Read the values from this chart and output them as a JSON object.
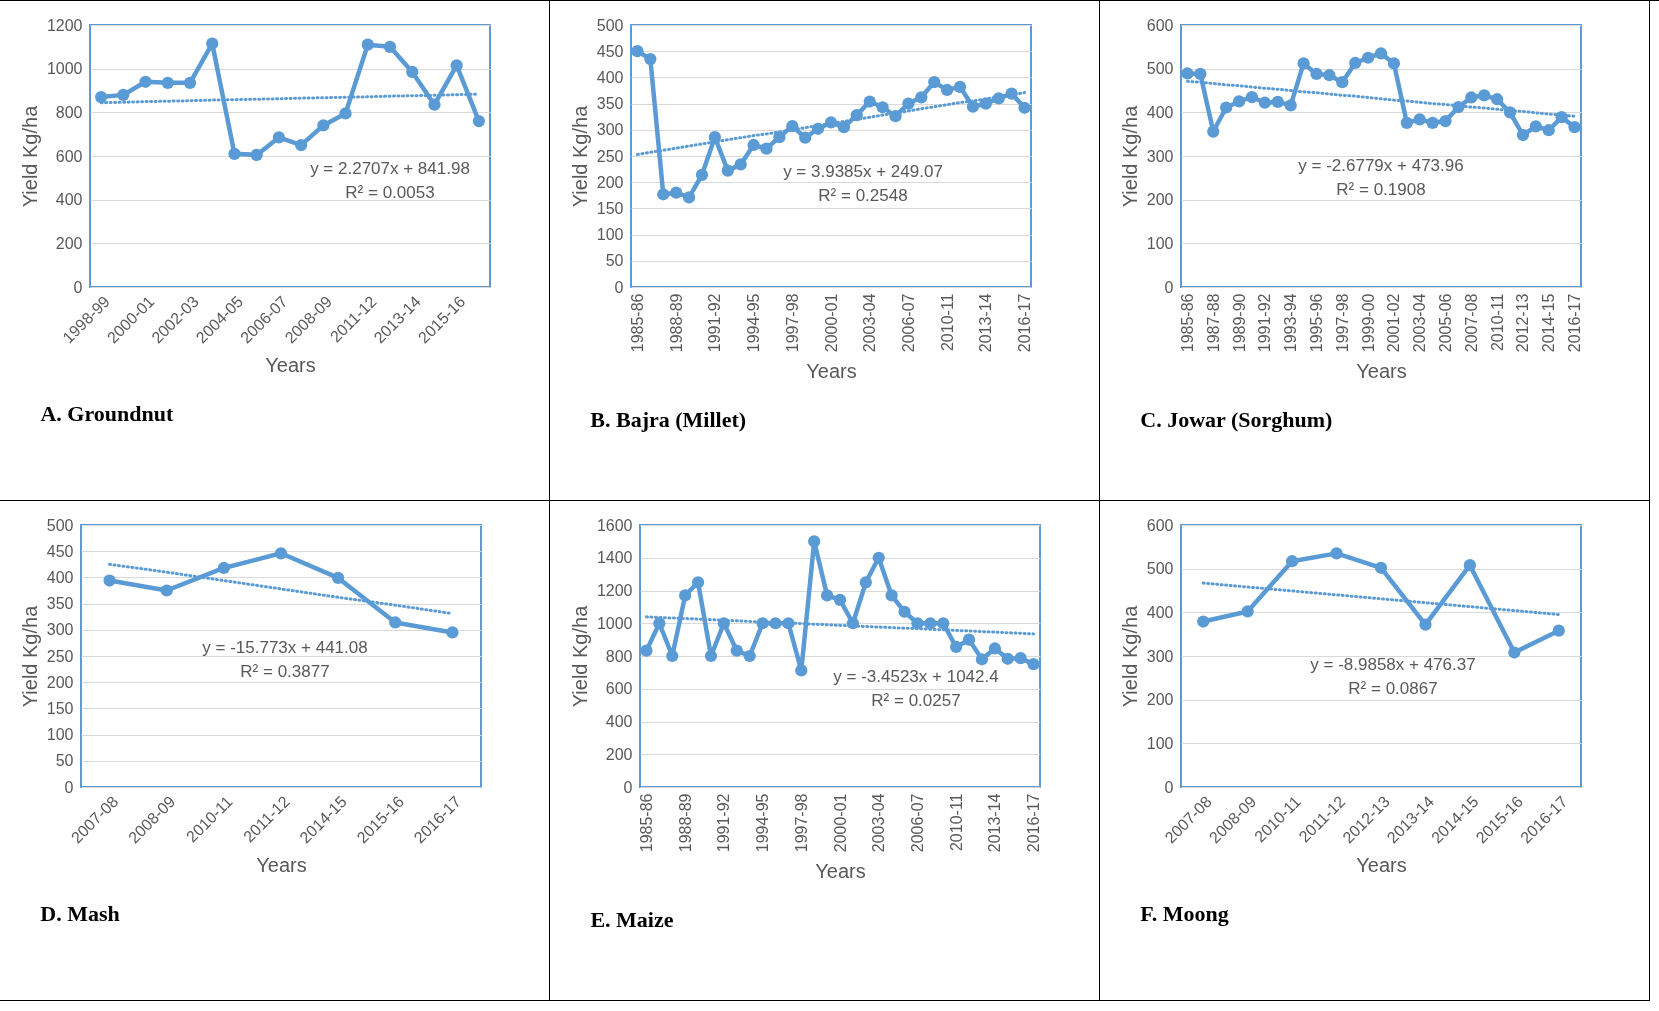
{
  "chart_data": [
    {
      "type": "line",
      "title": "A. Groundnut",
      "xlabel": "Years",
      "ylabel": "Yield Kg/ha",
      "ylim": [
        0,
        1200
      ],
      "yticks": [
        0,
        200,
        400,
        600,
        800,
        1000,
        1200
      ],
      "grid": "y",
      "marker": "circle",
      "categories": [
        "1998-99",
        null,
        "2000-01",
        null,
        "2002-03",
        null,
        "2004-05",
        null,
        "2006-07",
        null,
        "2008-09",
        null,
        "2011-12",
        null,
        "2013-14",
        null,
        "2015-16",
        null
      ],
      "series": [
        {
          "color": "#5b9bd5",
          "values": [
            870,
            880,
            940,
            935,
            935,
            1115,
            610,
            605,
            685,
            650,
            740,
            795,
            1110,
            1100,
            985,
            835,
            1015,
            760
          ]
        },
        {
          "color": "#5b9bd5",
          "marker": "none",
          "line_style": "dotted",
          "values": [
            844,
            846,
            849,
            851,
            853,
            856,
            858,
            860,
            862,
            865,
            867,
            869,
            871,
            874,
            876,
            878,
            881,
            883
          ]
        }
      ],
      "annotations": [
        "y = 2.2707x + 841.98",
        "R² = 0.0053"
      ]
    },
    {
      "type": "line",
      "title": "B. Bajra (Millet)",
      "xlabel": "Years",
      "ylabel": "Yield Kg/ha",
      "ylim": [
        0,
        500
      ],
      "yticks": [
        0,
        50,
        100,
        150,
        200,
        250,
        300,
        350,
        400,
        450,
        500
      ],
      "grid": "y",
      "marker": "circle",
      "categories": [
        "1985-86",
        null,
        null,
        "1988-89",
        null,
        null,
        "1991-92",
        null,
        null,
        "1994-95",
        null,
        null,
        "1997-98",
        null,
        null,
        "2000-01",
        null,
        null,
        "2003-04",
        null,
        null,
        "2006-07",
        null,
        null,
        "2010-11",
        null,
        null,
        "2013-14",
        null,
        null,
        "2016-17"
      ],
      "series": [
        {
          "color": "#5b9bd5",
          "values": [
            450,
            435,
            177,
            180,
            171,
            214,
            286,
            222,
            234,
            271,
            264,
            286,
            307,
            285,
            302,
            314,
            305,
            328,
            354,
            343,
            326,
            350,
            362,
            391,
            376,
            382,
            344,
            350,
            360,
            369,
            342
          ]
        },
        {
          "color": "#5b9bd5",
          "marker": "none",
          "line_style": "dotted",
          "values": [
            253,
            257,
            261,
            265,
            269,
            273,
            277,
            281,
            285,
            289,
            292,
            296,
            300,
            304,
            308,
            312,
            316,
            320,
            324,
            328,
            332,
            336,
            340,
            344,
            348,
            352,
            355,
            359,
            363,
            367,
            371
          ]
        }
      ],
      "annotations": [
        "y = 3.9385x + 249.07",
        "R² = 0.2548"
      ]
    },
    {
      "type": "line",
      "title": "C. Jowar (Sorghum)",
      "xlabel": "Years",
      "ylabel": "Yield Kg/ha",
      "ylim": [
        0,
        600
      ],
      "yticks": [
        0,
        100,
        200,
        300,
        400,
        500,
        600
      ],
      "grid": "y",
      "marker": "circle",
      "categories": [
        "1985-86",
        null,
        "1987-88",
        null,
        "1989-90",
        null,
        "1991-92",
        null,
        "1993-94",
        null,
        "1995-96",
        null,
        "1997-98",
        null,
        "1999-00",
        null,
        "2001-02",
        null,
        "2003-04",
        null,
        "2005-06",
        null,
        "2007-08",
        null,
        "2010-11",
        null,
        "2012-13",
        null,
        "2014-15",
        null,
        "2016-17"
      ],
      "series": [
        {
          "color": "#5b9bd5",
          "values": [
            489,
            488,
            356,
            411,
            425,
            435,
            422,
            424,
            416,
            512,
            488,
            485,
            469,
            513,
            525,
            535,
            512,
            376,
            384,
            376,
            380,
            412,
            434,
            439,
            430,
            400,
            348,
            368,
            359,
            389,
            366
          ]
        },
        {
          "color": "#5b9bd5",
          "marker": "none",
          "line_style": "dotted",
          "values": [
            471,
            469,
            466,
            463,
            461,
            458,
            455,
            453,
            450,
            447,
            445,
            442,
            439,
            437,
            434,
            431,
            428,
            426,
            423,
            420,
            418,
            415,
            412,
            410,
            407,
            404,
            402,
            399,
            396,
            394,
            391
          ]
        }
      ],
      "annotations": [
        "y = -2.6779x + 473.96",
        "R² = 0.1908"
      ]
    },
    {
      "type": "line",
      "title": "D. Mash",
      "xlabel": "Years",
      "ylabel": "Yield Kg/ha",
      "ylim": [
        0,
        500
      ],
      "yticks": [
        0,
        50,
        100,
        150,
        200,
        250,
        300,
        350,
        400,
        450,
        500
      ],
      "grid": "y",
      "marker": "circle",
      "categories": [
        "2007-08",
        "2008-09",
        "2010-11",
        "2011-12",
        "2014-15",
        "2015-16",
        "2016-17"
      ],
      "series": [
        {
          "color": "#5b9bd5",
          "values": [
            394,
            375,
            418,
            446,
            399,
            314,
            295
          ]
        },
        {
          "color": "#5b9bd5",
          "marker": "none",
          "line_style": "dotted",
          "values": [
            425,
            410,
            394,
            378,
            362,
            347,
            331
          ]
        }
      ],
      "annotations": [
        "y = -15.773x + 441.08",
        "R² = 0.3877"
      ]
    },
    {
      "type": "line",
      "title": "E. Maize",
      "xlabel": "Years",
      "ylabel": "Yield Kg/ha",
      "ylim": [
        0,
        1600
      ],
      "yticks": [
        0,
        200,
        400,
        600,
        800,
        1000,
        1200,
        1400,
        1600
      ],
      "grid": "y",
      "marker": "circle",
      "categories": [
        "1985-86",
        null,
        null,
        "1988-89",
        null,
        null,
        "1991-92",
        null,
        null,
        "1994-95",
        null,
        null,
        "1997-98",
        null,
        null,
        "2000-01",
        null,
        null,
        "2003-04",
        null,
        null,
        "2006-07",
        null,
        null,
        "2010-11",
        null,
        null,
        "2013-14",
        null,
        null,
        "2016-17"
      ],
      "series": [
        {
          "color": "#5b9bd5",
          "values": [
            833,
            1000,
            800,
            1170,
            1250,
            800,
            1000,
            833,
            800,
            1000,
            1000,
            1000,
            712,
            1500,
            1170,
            1143,
            1000,
            1250,
            1400,
            1170,
            1070,
            1000,
            1000,
            1000,
            855,
            900,
            780,
            846,
            783,
            787,
            750
          ]
        },
        {
          "color": "#5b9bd5",
          "marker": "none",
          "line_style": "dotted",
          "values": [
            1039,
            1035,
            1032,
            1029,
            1025,
            1022,
            1018,
            1015,
            1011,
            1008,
            1004,
            1001,
            998,
            994,
            991,
            987,
            984,
            980,
            977,
            973,
            970,
            967,
            963,
            960,
            956,
            953,
            949,
            946,
            942,
            939,
            935
          ]
        }
      ],
      "annotations": [
        "y = -3.4523x + 1042.4",
        "R² = 0.0257"
      ]
    },
    {
      "type": "line",
      "title": "F. Moong",
      "xlabel": "Years",
      "ylabel": "Yield Kg/ha",
      "ylim": [
        0,
        600
      ],
      "yticks": [
        0,
        100,
        200,
        300,
        400,
        500,
        600
      ],
      "grid": "y",
      "marker": "circle",
      "categories": [
        "2007-08",
        "2008-09",
        "2010-11",
        "2011-12",
        "2012-13",
        "2013-14",
        "2014-15",
        "2015-16",
        "2016-17"
      ],
      "series": [
        {
          "color": "#5b9bd5",
          "values": [
            379,
            402,
            517,
            535,
            502,
            372,
            508,
            308,
            358
          ]
        },
        {
          "color": "#5b9bd5",
          "marker": "none",
          "line_style": "dotted",
          "values": [
            467,
            458,
            449,
            440,
            431,
            422,
            413,
            404,
            395
          ]
        }
      ],
      "annotations": [
        "y = -8.9858x + 476.37",
        "R² = 0.0867"
      ]
    }
  ]
}
